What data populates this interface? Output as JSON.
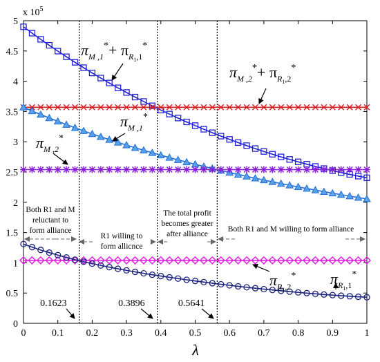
{
  "chart_data": {
    "type": "line",
    "xlabel": "λ",
    "ylabel": "",
    "xlim": [
      0,
      1
    ],
    "ylim": [
      0,
      500000
    ],
    "y_exponent_label": "x 10",
    "y_exponent_power": "5",
    "x_ticks": [
      0,
      0.1,
      0.2,
      0.3,
      0.4,
      0.5,
      0.6,
      0.7,
      0.8,
      0.9,
      1
    ],
    "x_tick_labels": [
      "0",
      "0.1",
      "0.2",
      "0.3",
      "0.4",
      "0.5",
      "0.6",
      "0.7",
      "0.8",
      "0.9",
      "1"
    ],
    "y_ticks": [
      0,
      50000,
      100000,
      150000,
      200000,
      250000,
      300000,
      350000,
      400000,
      450000,
      500000
    ],
    "y_tick_labels": [
      "0",
      "0.5",
      "1",
      "1.5",
      "2",
      "2.5",
      "3",
      "3.5",
      "4",
      "4.5",
      "5"
    ],
    "grid": false,
    "legend": "none",
    "x": [
      0,
      0.025,
      0.05,
      0.075,
      0.1,
      0.125,
      0.15,
      0.175,
      0.2,
      0.225,
      0.25,
      0.275,
      0.3,
      0.325,
      0.35,
      0.375,
      0.4,
      0.425,
      0.45,
      0.475,
      0.5,
      0.525,
      0.55,
      0.575,
      0.6,
      0.625,
      0.65,
      0.675,
      0.7,
      0.725,
      0.75,
      0.775,
      0.8,
      0.825,
      0.85,
      0.875,
      0.9,
      0.925,
      0.95,
      0.975,
      1
    ],
    "series": [
      {
        "marker": "square",
        "color": "#1f1fd6",
        "values": [
          490000,
          479500,
          469300,
          459400,
          449800,
          440400,
          431300,
          422400,
          413700,
          405300,
          397100,
          389100,
          381400,
          373800,
          366500,
          359400,
          352400,
          345700,
          339200,
          332800,
          326700,
          320700,
          314900,
          309300,
          303900,
          298600,
          293600,
          288700,
          284000,
          279400,
          275000,
          270800,
          266800,
          262900,
          259200,
          255700,
          252300,
          249100,
          246100,
          243200,
          240500
        ]
      },
      {
        "marker": "x",
        "color": "#d62222",
        "values": [
          357000,
          357000,
          357000,
          357000,
          357000,
          357000,
          357000,
          357000,
          357000,
          357000,
          357000,
          357000,
          357000,
          357000,
          357000,
          357000,
          357000,
          357000,
          357000,
          357000,
          357000,
          357000,
          357000,
          357000,
          357000,
          357000,
          357000,
          357000,
          357000,
          357000,
          357000,
          357000,
          357000,
          357000,
          357000,
          357000,
          357000,
          357000,
          357000,
          357000,
          357000
        ]
      },
      {
        "marker": "triangle",
        "color": "#1f6fd6",
        "values": [
          357000,
          350900,
          345000,
          339300,
          333700,
          328300,
          323100,
          318000,
          313000,
          308200,
          303500,
          298900,
          294500,
          290100,
          285900,
          281800,
          277800,
          273900,
          270100,
          266400,
          262800,
          259200,
          255800,
          252400,
          249100,
          245900,
          242800,
          239700,
          236700,
          233800,
          230900,
          228100,
          225400,
          222700,
          220100,
          217500,
          215000,
          212600,
          210200,
          207800,
          205500
        ]
      },
      {
        "marker": "star",
        "color": "#8a1fd6",
        "values": [
          254000,
          254000,
          254000,
          254000,
          254000,
          254000,
          254000,
          254000,
          254000,
          254000,
          254000,
          254000,
          254000,
          254000,
          254000,
          254000,
          254000,
          254000,
          254000,
          254000,
          254000,
          254000,
          254000,
          254000,
          254000,
          254000,
          254000,
          254000,
          254000,
          254000,
          254000,
          254000,
          254000,
          254000,
          254000,
          254000,
          254000,
          254000,
          254000,
          254000,
          254000
        ]
      },
      {
        "marker": "diamond",
        "color": "#e01fe0",
        "values": [
          104000,
          104000,
          104000,
          104000,
          104000,
          104000,
          104000,
          104000,
          104000,
          104000,
          104000,
          104000,
          104000,
          104000,
          104000,
          104000,
          104000,
          104000,
          104000,
          104000,
          104000,
          104000,
          104000,
          104000,
          104000,
          104000,
          104000,
          104000,
          104000,
          104000,
          104000,
          104000,
          104000,
          104000,
          104000,
          104000,
          104000,
          104000,
          104000,
          104000,
          104000
        ]
      },
      {
        "marker": "circle",
        "color": "#1a237e",
        "values": [
          131000,
          125900,
          121200,
          116800,
          112700,
          108800,
          105200,
          101800,
          98600,
          95600,
          92800,
          90100,
          87500,
          85000,
          82600,
          80300,
          78100,
          76000,
          73900,
          71900,
          70000,
          68100,
          66300,
          64500,
          62800,
          61100,
          59500,
          58000,
          56500,
          55100,
          53700,
          52400,
          51100,
          49900,
          48700,
          47600,
          46600,
          45600,
          44700,
          43900,
          43000
        ]
      }
    ],
    "vlines": [
      {
        "x": 0.1623,
        "label": "0.1623"
      },
      {
        "x": 0.3896,
        "label": "0.3896"
      },
      {
        "x": 0.5641,
        "label": "0.5641"
      }
    ],
    "curve_labels": {
      "total1": {
        "a": "π",
        "b": "M ,1",
        "c": "*",
        "d": "+ π",
        "e": "R",
        "f": "1",
        "g": ",1",
        "h": "*"
      },
      "total2": {
        "a": "π",
        "b": "M ,2",
        "c": "*",
        "d": "+ π",
        "e": "R",
        "f": "1",
        "g": ",2",
        "h": "*"
      },
      "pm1": {
        "a": "π",
        "b": "M ,1",
        "c": "*"
      },
      "pm2": {
        "a": "π",
        "b": "M ,2",
        "c": "*"
      },
      "pr2": {
        "a": "π",
        "b": "R",
        "c": "1",
        "d": ",2",
        "e": "*"
      },
      "pr1": {
        "a": "π",
        "b": "R",
        "c": "1",
        "d": ",1",
        "e": "*"
      }
    },
    "annotations": {
      "region1": [
        "Both R1 and M",
        "reluctant to",
        "form alliance"
      ],
      "region2": [
        "R1 willing to",
        "form allicnce"
      ],
      "region3": [
        "The total profit",
        "becomes greater",
        "after alliance"
      ],
      "region4": [
        "Both R1 and M willing to form alliance"
      ]
    }
  }
}
